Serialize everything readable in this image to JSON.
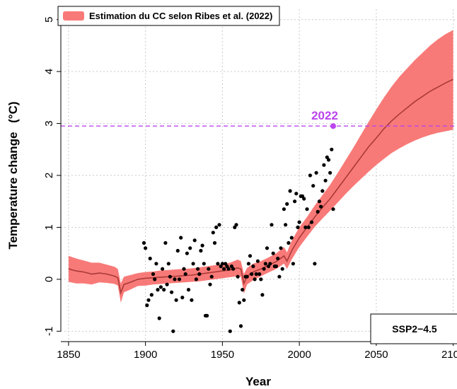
{
  "chart_data": {
    "type": "line",
    "xlabel": "Year",
    "ylabel": "Temperature change",
    "ylabel_unit": "(°C)",
    "xlim": [
      1845,
      2102
    ],
    "ylim": [
      -1.2,
      5.2
    ],
    "x_ticks": [
      "1850",
      "1900",
      "1950",
      "2000",
      "2050",
      "2100"
    ],
    "x_tick_values": [
      1850,
      1900,
      1950,
      2000,
      2050,
      2100
    ],
    "y_ticks": [
      "-1",
      "0",
      "1",
      "2",
      "3",
      "4",
      "5"
    ],
    "y_tick_values": [
      -1,
      0,
      1,
      2,
      3,
      4,
      5
    ],
    "grid": true,
    "legend": {
      "position": "top-left",
      "label": "Estimation du CC selon Ribes et al. (2022)"
    },
    "annotation_box": {
      "label": "SSP2−4.5",
      "position": "bottom-right"
    },
    "reference_line": {
      "y": 2.95,
      "label": "2022",
      "point_x": 2022,
      "point_y": 2.95,
      "color": "#bb44ee"
    },
    "colors": {
      "band": "#f87a78",
      "line": "#a83a38",
      "dots": "#000000",
      "grid": "#c9c9c9"
    },
    "series": [
      {
        "name": "Estimation du CC selon Ribes et al. (2022)",
        "type": "band",
        "x": [
          1850,
          1855,
          1860,
          1865,
          1870,
          1875,
          1880,
          1882,
          1884,
          1886,
          1890,
          1895,
          1900,
          1905,
          1910,
          1915,
          1920,
          1925,
          1930,
          1935,
          1940,
          1945,
          1950,
          1955,
          1960,
          1962,
          1964,
          1966,
          1970,
          1975,
          1980,
          1985,
          1990,
          1992,
          1995,
          2000,
          2005,
          2010,
          2015,
          2020,
          2025,
          2030,
          2035,
          2040,
          2045,
          2050,
          2055,
          2060,
          2065,
          2070,
          2075,
          2080,
          2085,
          2090,
          2095,
          2100
        ],
        "mid": [
          0.2,
          0.16,
          0.14,
          0.1,
          0.12,
          0.1,
          0.06,
          0.03,
          -0.26,
          -0.1,
          -0.06,
          0.0,
          0.02,
          0.03,
          0.04,
          0.05,
          0.06,
          0.07,
          0.08,
          0.1,
          0.12,
          0.14,
          0.16,
          0.18,
          0.22,
          0.2,
          -0.08,
          0.06,
          0.14,
          0.2,
          0.27,
          0.34,
          0.45,
          0.35,
          0.55,
          0.8,
          1.0,
          1.2,
          1.38,
          1.55,
          1.75,
          1.95,
          2.15,
          2.35,
          2.55,
          2.72,
          2.9,
          3.05,
          3.18,
          3.3,
          3.42,
          3.52,
          3.62,
          3.7,
          3.78,
          3.85
        ],
        "lower": [
          -0.05,
          -0.08,
          -0.08,
          -0.1,
          -0.06,
          -0.07,
          -0.09,
          -0.12,
          -0.45,
          -0.25,
          -0.2,
          -0.13,
          -0.12,
          -0.1,
          -0.09,
          -0.08,
          -0.07,
          -0.06,
          -0.05,
          -0.04,
          -0.02,
          0.0,
          0.02,
          0.04,
          0.06,
          0.05,
          -0.28,
          -0.1,
          -0.02,
          0.06,
          0.13,
          0.2,
          0.3,
          0.2,
          0.38,
          0.62,
          0.82,
          1.01,
          1.17,
          1.32,
          1.48,
          1.64,
          1.79,
          1.93,
          2.07,
          2.2,
          2.32,
          2.43,
          2.52,
          2.6,
          2.67,
          2.73,
          2.78,
          2.82,
          2.85,
          2.88
        ],
        "upper": [
          0.45,
          0.4,
          0.36,
          0.32,
          0.32,
          0.28,
          0.24,
          0.2,
          -0.08,
          0.05,
          0.08,
          0.12,
          0.14,
          0.15,
          0.17,
          0.18,
          0.19,
          0.2,
          0.21,
          0.23,
          0.25,
          0.27,
          0.29,
          0.32,
          0.38,
          0.35,
          0.1,
          0.22,
          0.3,
          0.35,
          0.42,
          0.5,
          0.62,
          0.52,
          0.74,
          1.0,
          1.2,
          1.42,
          1.62,
          1.82,
          2.05,
          2.29,
          2.53,
          2.78,
          3.03,
          3.27,
          3.5,
          3.71,
          3.9,
          4.06,
          4.22,
          4.36,
          4.5,
          4.62,
          4.72,
          4.8
        ]
      },
      {
        "name": "observations",
        "type": "scatter",
        "x": [
          1899,
          1900,
          1901,
          1902,
          1903,
          1904,
          1905,
          1906,
          1907,
          1908,
          1909,
          1910,
          1911,
          1912,
          1913,
          1914,
          1915,
          1916,
          1917,
          1918,
          1919,
          1920,
          1921,
          1922,
          1923,
          1924,
          1925,
          1926,
          1927,
          1928,
          1929,
          1930,
          1931,
          1932,
          1933,
          1934,
          1935,
          1936,
          1937,
          1938,
          1939,
          1940,
          1941,
          1942,
          1943,
          1944,
          1945,
          1946,
          1947,
          1948,
          1949,
          1950,
          1951,
          1952,
          1953,
          1954,
          1955,
          1956,
          1957,
          1958,
          1959,
          1960,
          1961,
          1962,
          1963,
          1964,
          1965,
          1966,
          1967,
          1968,
          1969,
          1970,
          1971,
          1972,
          1973,
          1974,
          1975,
          1976,
          1977,
          1978,
          1979,
          1980,
          1981,
          1982,
          1983,
          1984,
          1985,
          1986,
          1987,
          1988,
          1989,
          1990,
          1991,
          1992,
          1993,
          1994,
          1995,
          1996,
          1997,
          1998,
          1999,
          2000,
          2001,
          2002,
          2003,
          2004,
          2005,
          2006,
          2007,
          2008,
          2009,
          2010,
          2011,
          2012,
          2013,
          2014,
          2015,
          2016,
          2017,
          2018,
          2019,
          2020,
          2021,
          2022
        ],
        "y": [
          0.7,
          0.6,
          -0.5,
          -0.4,
          0.4,
          -0.3,
          0.1,
          0.0,
          0.3,
          -0.2,
          -0.75,
          -0.15,
          0.2,
          -0.2,
          0.7,
          -0.1,
          0.3,
          0.05,
          -0.25,
          -1.0,
          0.0,
          -0.4,
          0.55,
          0.0,
          0.8,
          -0.35,
          0.2,
          0.1,
          0.5,
          -0.2,
          0.6,
          -0.4,
          0.3,
          0.75,
          0.0,
          0.2,
          0.1,
          0.55,
          0.65,
          0.3,
          -0.7,
          -0.7,
          0.2,
          -0.1,
          0.05,
          0.9,
          0.7,
          1.0,
          0.3,
          1.05,
          0.25,
          0.3,
          0.2,
          0.3,
          0.25,
          0.2,
          -1.0,
          0.25,
          0.2,
          1.0,
          1.05,
          0.05,
          -0.45,
          -0.9,
          -0.2,
          -0.4,
          0.05,
          0.05,
          0.3,
          0.45,
          0.1,
          0.25,
          0.0,
          0.1,
          0.35,
          0.1,
          0.0,
          -0.3,
          0.2,
          0.3,
          0.6,
          0.25,
          0.3,
          1.05,
          0.5,
          0.25,
          0.25,
          0.4,
          0.05,
          0.6,
          0.2,
          1.35,
          1.05,
          1.45,
          0.7,
          1.7,
          0.8,
          0.3,
          1.5,
          1.65,
          1.0,
          1.1,
          1.6,
          1.6,
          1.55,
          1.0,
          1.35,
          1.0,
          2.0,
          1.1,
          1.8,
          0.3,
          2.05,
          1.3,
          1.5,
          1.4,
          1.7,
          2.2,
          1.9,
          2.35,
          2.3,
          2.05,
          2.5,
          1.35
        ]
      }
    ]
  }
}
